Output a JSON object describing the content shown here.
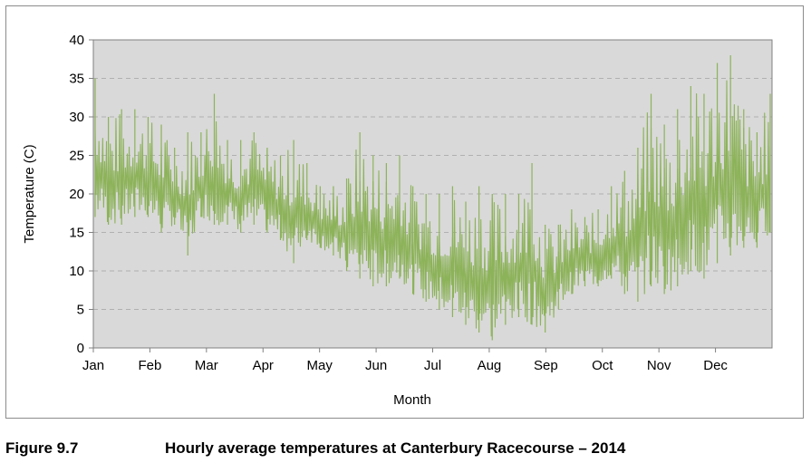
{
  "caption": {
    "number": "Figure 9.7",
    "text": "Hourly average temperatures at Canterbury Racecourse – 2014"
  },
  "colors": {
    "series": "#8db35a",
    "plot_background": "#d9d9d9",
    "gridline": "#b0b0b0",
    "axis": "#808080"
  },
  "chart_data": {
    "type": "line",
    "xlabel": "Month",
    "ylabel": "Temperature  (C)",
    "ylim": [
      0,
      40
    ],
    "yticks": [
      0,
      5,
      10,
      15,
      20,
      25,
      30,
      35,
      40
    ],
    "xticks": [
      "Jan",
      "Feb",
      "Mar",
      "Apr",
      "May",
      "Jun",
      "Jul",
      "Aug",
      "Sep",
      "Oct",
      "Nov",
      "Dec"
    ],
    "grid": "horizontal dashed",
    "series": [
      {
        "x_unit": "week of 2014",
        "x": [
          1,
          2,
          3,
          4,
          5,
          6,
          7,
          8,
          9,
          10,
          11,
          12,
          13,
          14,
          15,
          16,
          17,
          18,
          19,
          20,
          21,
          22,
          23,
          24,
          25,
          26,
          27,
          28,
          29,
          30,
          31,
          32,
          33,
          34,
          35,
          36,
          37,
          38,
          39,
          40,
          41,
          42,
          43,
          44,
          45,
          46,
          47,
          48,
          49,
          50,
          51,
          52
        ],
        "min": [
          17,
          16,
          16,
          17,
          17,
          15,
          16,
          12,
          17,
          16,
          16,
          15,
          16,
          15,
          14,
          11,
          14,
          13,
          12,
          10,
          9,
          8,
          8,
          9,
          7,
          6,
          5,
          4,
          3,
          2,
          1,
          3,
          4,
          3,
          2,
          5,
          7,
          8,
          8,
          9,
          7,
          6,
          8,
          7,
          8,
          10,
          9,
          11,
          12,
          13,
          13,
          15
        ],
        "max": [
          35,
          30,
          31,
          31,
          30,
          29,
          26,
          28,
          28,
          33,
          27,
          27,
          28,
          26,
          25,
          27,
          24,
          21,
          21,
          22,
          28,
          25,
          24,
          25,
          21,
          20,
          20,
          21,
          19,
          21,
          20,
          20,
          20,
          24,
          16,
          16,
          18,
          17,
          18,
          21,
          23,
          26,
          33,
          29,
          31,
          34,
          33,
          37,
          38,
          31,
          28,
          33
        ]
      }
    ]
  }
}
